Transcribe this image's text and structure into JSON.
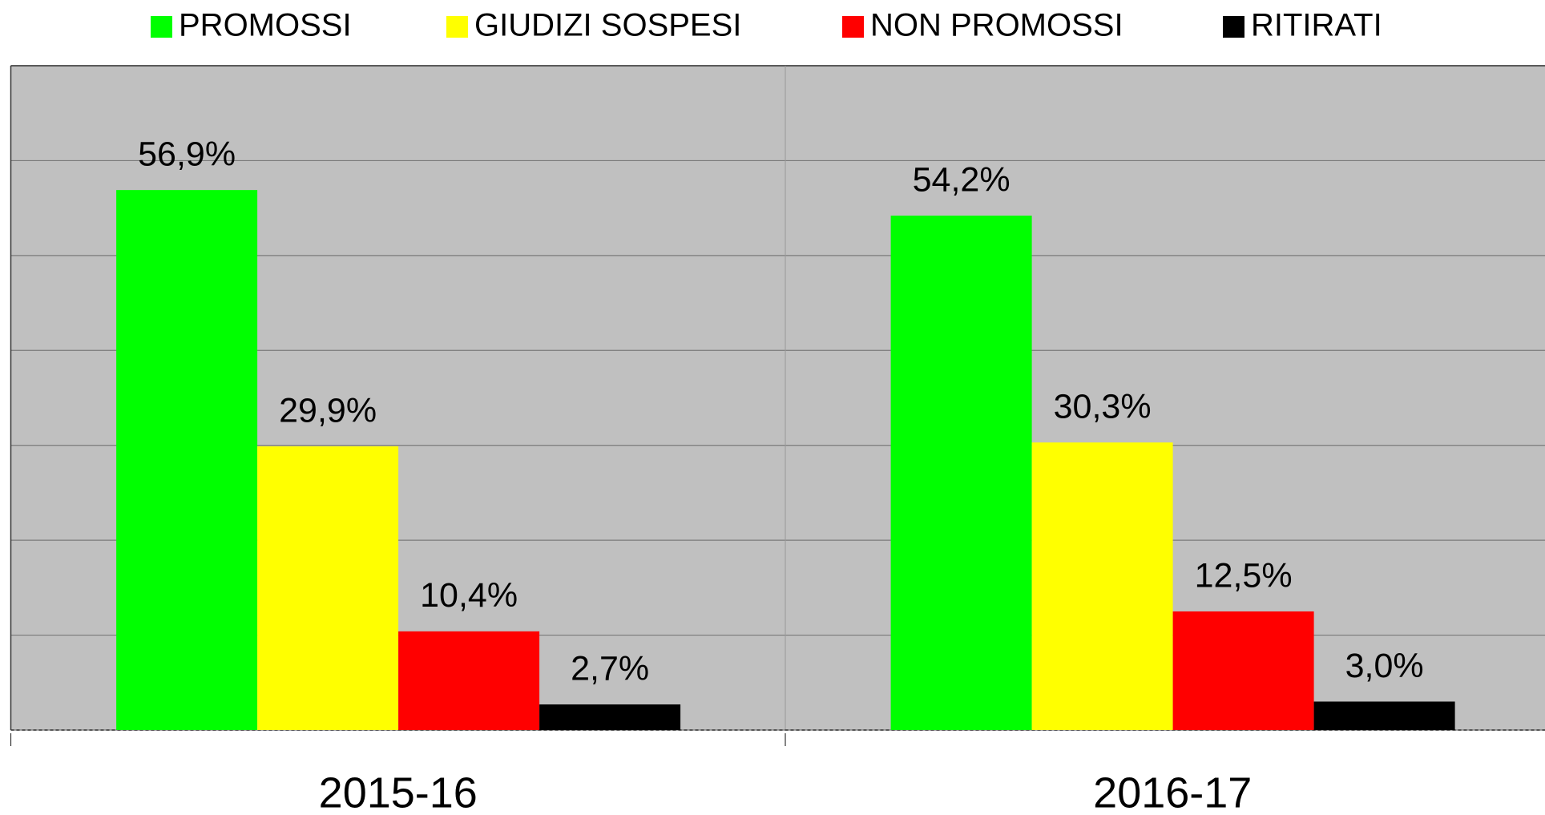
{
  "chart_data": {
    "type": "bar",
    "categories": [
      "2015-16",
      "2016-17"
    ],
    "series": [
      {
        "name": "PROMOSSI",
        "color": "#00ff00",
        "values": [
          56.9,
          54.2
        ],
        "value_labels": [
          "56,9%",
          "54,2%"
        ]
      },
      {
        "name": "GIUDIZI SOSPESI",
        "color": "#ffff00",
        "values": [
          29.9,
          30.3
        ],
        "value_labels": [
          "29,9%",
          "30,3%"
        ]
      },
      {
        "name": "NON PROMOSSI",
        "color": "#ff0000",
        "values": [
          10.4,
          12.5
        ],
        "value_labels": [
          "10,4%",
          "12,5%"
        ]
      },
      {
        "name": "RITIRATI",
        "color": "#000000",
        "values": [
          2.7,
          3.0
        ],
        "value_labels": [
          "2,7%",
          "3,0%"
        ]
      }
    ],
    "ylim": [
      0,
      70
    ],
    "yticks": [
      0,
      10,
      20,
      30,
      40,
      50,
      60,
      70
    ],
    "grid": true,
    "legend": "top"
  }
}
